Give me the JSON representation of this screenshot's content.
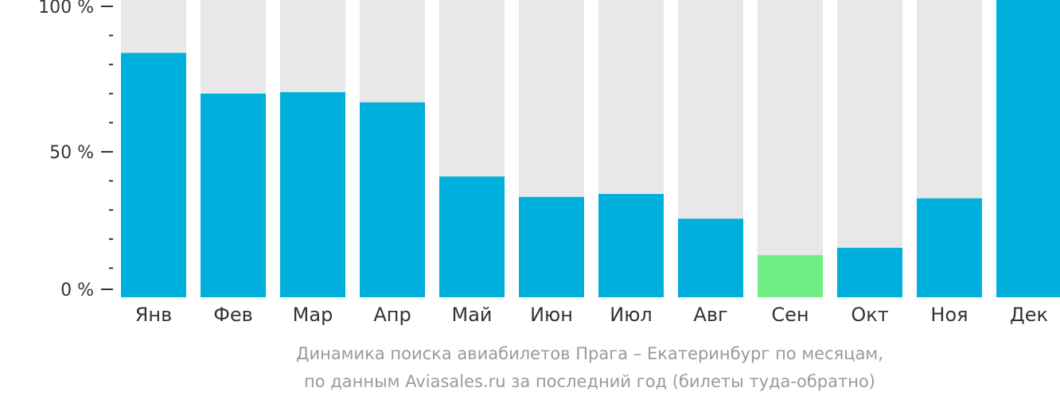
{
  "chart_data": {
    "type": "bar",
    "categories": [
      "Янв",
      "Фев",
      "Мар",
      "Апр",
      "Май",
      "Июн",
      "Июл",
      "Авг",
      "Сен",
      "Окт",
      "Ноя",
      "Дек"
    ],
    "values": [
      84,
      70,
      70.5,
      67,
      41.5,
      34.5,
      35.5,
      27,
      14.5,
      17,
      34,
      100
    ],
    "highlight_index": 8,
    "ylim": [
      0,
      100
    ],
    "y_ticks": [
      {
        "value": 100,
        "label": "100 %"
      },
      {
        "value": 50,
        "label": "50 %"
      },
      {
        "value": 0,
        "label": "0 %"
      }
    ],
    "minor_ticks": [
      10,
      20,
      30,
      40,
      60,
      70,
      80,
      90
    ],
    "caption_line1": "Динамика поиска авиабилетов Прага – Екатеринбург по месяцам,",
    "caption_line2": "по данным Aviasales.ru за последний год (билеты туда-обратно)",
    "colors": {
      "bar": "#00b0dc",
      "highlight": "#6ef087",
      "background_bar": "#e8e8e8",
      "axis": "#333333"
    }
  }
}
